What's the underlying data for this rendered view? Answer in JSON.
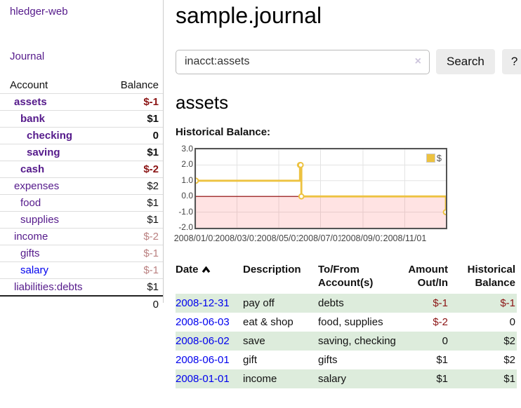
{
  "sidebar": {
    "app_title": "hledger-web",
    "nav": {
      "journal": "Journal"
    },
    "accounts_table": {
      "headers": {
        "account": "Account",
        "balance": "Balance"
      },
      "rows": [
        {
          "name": "assets",
          "balance": "$-1"
        },
        {
          "name": "bank",
          "balance": "$1"
        },
        {
          "name": "checking",
          "balance": "0"
        },
        {
          "name": "saving",
          "balance": "$1"
        },
        {
          "name": "cash",
          "balance": "$-2"
        },
        {
          "name": "expenses",
          "balance": "$2"
        },
        {
          "name": "food",
          "balance": "$1"
        },
        {
          "name": "supplies",
          "balance": "$1"
        },
        {
          "name": "income",
          "balance": "$-2"
        },
        {
          "name": "gifts",
          "balance": "$-1"
        },
        {
          "name": "salary",
          "balance": "$-1"
        },
        {
          "name": "liabilities:debts",
          "balance": "$1"
        }
      ],
      "total": "0"
    }
  },
  "main": {
    "page_title": "sample.journal",
    "search": {
      "value": "inacct:assets",
      "clear_icon": "×",
      "button_label": "Search",
      "help_label": "?"
    },
    "account_heading": "assets",
    "chart_title": "Historical Balance:"
  },
  "chart_data": {
    "type": "line",
    "steps": true,
    "series": [
      {
        "name": "$",
        "x": [
          "2008-01-01",
          "2008-06-01",
          "2008-06-02",
          "2008-06-03",
          "2008-12-31"
        ],
        "values": [
          1,
          2,
          2,
          0,
          -1
        ]
      }
    ],
    "x_ticks": [
      "2008/01/01",
      "2008/03/01",
      "2008/05/01",
      "2008/07/01",
      "2008/09/01",
      "2008/11/01"
    ],
    "y_ticks": [
      "3.0",
      "2.0",
      "1.0",
      "0.0",
      "-1.0",
      "-2.0"
    ],
    "ylim": [
      -2,
      3
    ],
    "x_range": [
      "2008-01-01",
      "2008-12-31"
    ],
    "legend": {
      "label": "$",
      "position": "top-right",
      "swatch_color": "#EDC240"
    },
    "grid": true,
    "colors": {
      "line": "#EDC240",
      "marker_fill": "#ffffff",
      "zero_line": "#8B0000",
      "negative_region": "rgba(255,80,80,0.16)",
      "gridline": "#e3e3e3",
      "border": "#545454"
    }
  },
  "register": {
    "headers": {
      "date": "Date",
      "description": "Description",
      "tofrom": "To/From Account(s)",
      "amount": "Amount Out/In",
      "balance": "Historical Balance"
    },
    "rows": [
      {
        "date": "2008-12-31",
        "description": "pay off",
        "accounts": "debts",
        "amount": "$-1",
        "balance": "$-1"
      },
      {
        "date": "2008-06-03",
        "description": "eat & shop",
        "accounts": "food, supplies",
        "amount": "$-2",
        "balance": "0"
      },
      {
        "date": "2008-06-02",
        "description": "save",
        "accounts": "saving, checking",
        "amount": "0",
        "balance": "$2"
      },
      {
        "date": "2008-06-01",
        "description": "gift",
        "accounts": "gifts",
        "amount": "$1",
        "balance": "$2"
      },
      {
        "date": "2008-01-01",
        "description": "income",
        "accounts": "salary",
        "amount": "$1",
        "balance": "$1"
      }
    ]
  }
}
